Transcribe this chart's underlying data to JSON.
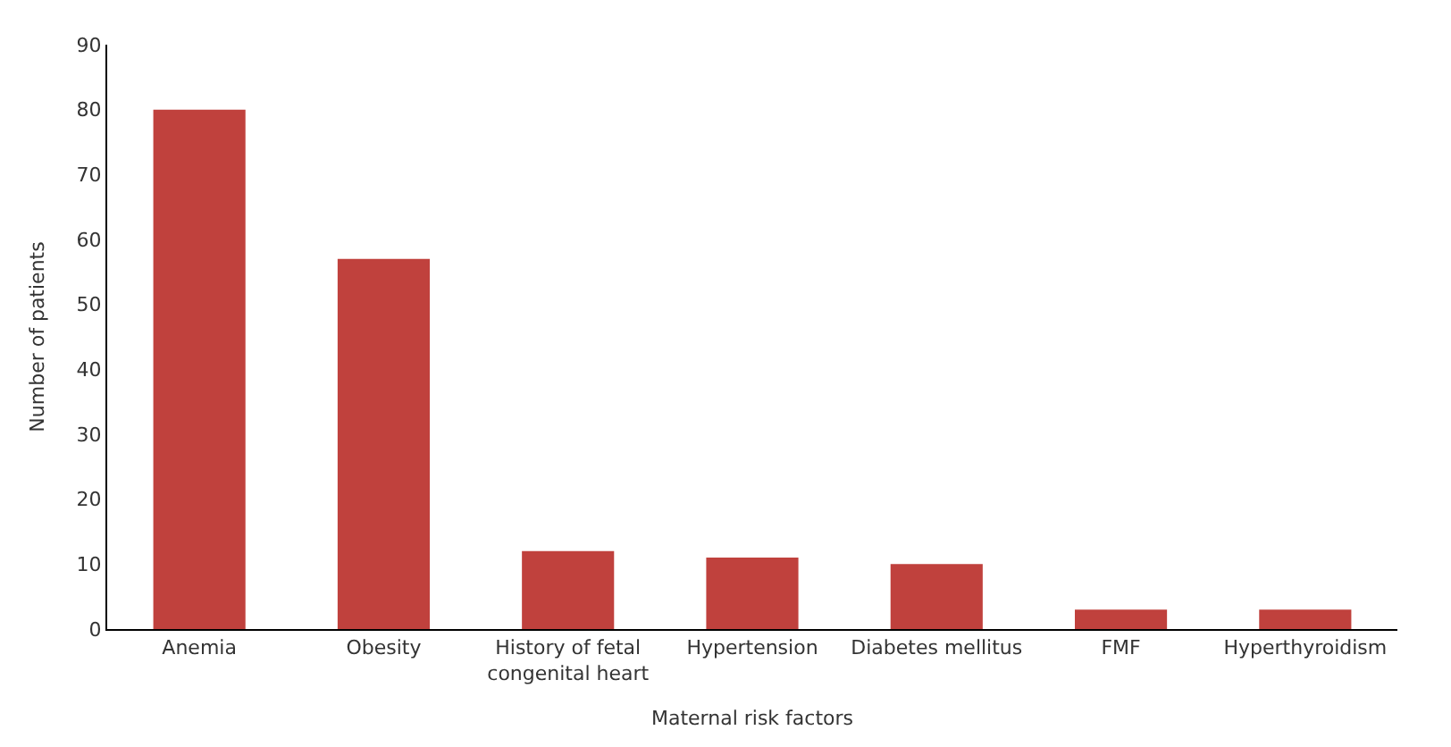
{
  "chart_data": {
    "type": "bar",
    "xlabel": "Maternal risk factors",
    "ylabel": "Number of patients",
    "categories": [
      "Anemia",
      "Obesity",
      "History of fetal congenital heart",
      "Hypertension",
      "Diabetes mellitus",
      "FMF",
      "Hyperthyroidism"
    ],
    "values": [
      80,
      57,
      12,
      11,
      10,
      3,
      3
    ],
    "color": "#c0413d",
    "ylim": [
      0,
      90
    ],
    "yticks": [
      0,
      10,
      20,
      30,
      40,
      50,
      60,
      70,
      80,
      90
    ]
  }
}
